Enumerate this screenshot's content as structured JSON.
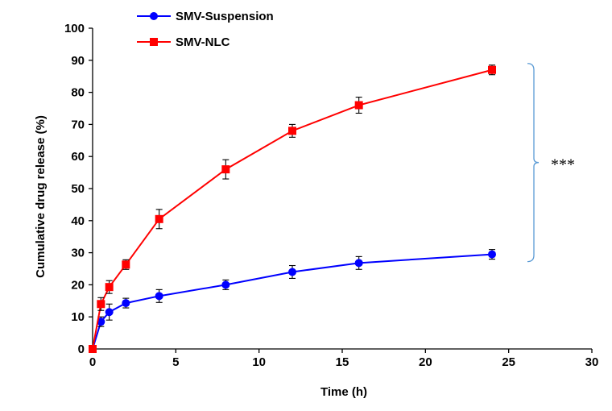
{
  "chart_data": {
    "type": "line",
    "xlabel": "Time (h)",
    "ylabel": "Cumulative drug release (%)",
    "xlim": [
      0,
      30
    ],
    "ylim": [
      0,
      100
    ],
    "xticks": [
      0,
      5,
      10,
      15,
      20,
      25,
      30
    ],
    "yticks": [
      0,
      10,
      20,
      30,
      40,
      50,
      60,
      70,
      80,
      90,
      100
    ],
    "grid": false,
    "legend_position": "top-left",
    "series": [
      {
        "name": "SMV-Suspension",
        "color": "#0000ff",
        "marker": "circle",
        "x": [
          0,
          0.5,
          1,
          2,
          4,
          8,
          12,
          16,
          24
        ],
        "y": [
          0,
          8.5,
          11.5,
          14.3,
          16.5,
          20.0,
          24.0,
          26.8,
          29.5
        ],
        "error": [
          0,
          1.5,
          2.5,
          1.5,
          2.0,
          1.5,
          2.0,
          2.0,
          1.5
        ]
      },
      {
        "name": "SMV-NLC",
        "color": "#ff0000",
        "marker": "square",
        "x": [
          0,
          0.5,
          1,
          2,
          4,
          8,
          12,
          16,
          24
        ],
        "y": [
          0,
          14.0,
          19.3,
          26.3,
          40.5,
          56.0,
          68.0,
          76.0,
          87.0
        ],
        "error": [
          0,
          2.0,
          2.0,
          1.5,
          3.0,
          3.0,
          2.0,
          2.5,
          1.5
        ]
      }
    ],
    "annotation": {
      "text": "***",
      "bracket_from": 29.5,
      "bracket_to": 87.0,
      "bracket_color": "#5b9bd5"
    }
  }
}
